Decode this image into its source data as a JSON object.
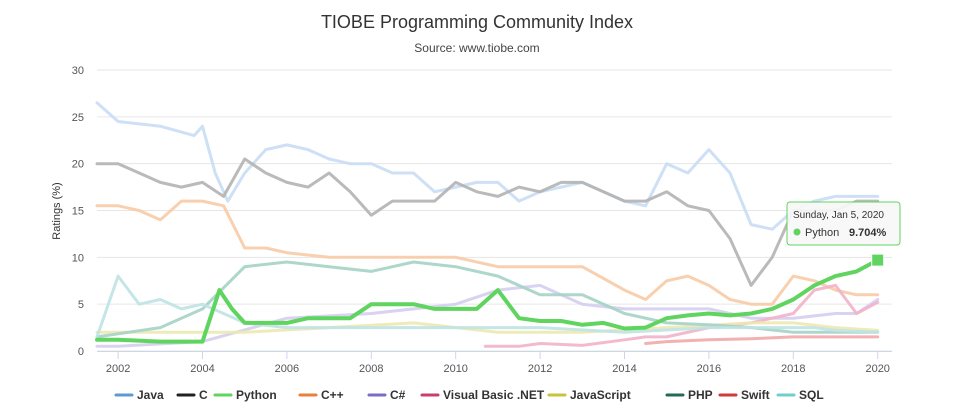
{
  "chart_data": {
    "type": "line",
    "title": "TIOBE Programming Community Index",
    "subtitle": "Source: www.tiobe.com",
    "ylabel": "Ratings (%)",
    "xlabel": "",
    "ylim": [
      0,
      30
    ],
    "xlim": [
      2001.5,
      2020.3
    ],
    "y_ticks": [
      "0",
      "5",
      "10",
      "15",
      "20",
      "25",
      "30"
    ],
    "x_ticks": [
      "2002",
      "2004",
      "2006",
      "2008",
      "2010",
      "2012",
      "2014",
      "2016",
      "2018",
      "2020"
    ],
    "grid": true,
    "legend_position": "bottom",
    "tooltip": {
      "date": "Sunday, Jan 5, 2020",
      "series": "Python",
      "value": "9.704%",
      "x": 2020.0,
      "y": 9.704
    },
    "series": [
      {
        "name": "Java",
        "color": "#c9ddf5",
        "legend_color": "#5b9bd5",
        "width": 3,
        "x": [
          2001.5,
          2002,
          2003,
          2003.8,
          2004,
          2004.3,
          2004.6,
          2005,
          2005.5,
          2006,
          2006.5,
          2007,
          2007.5,
          2008,
          2008.5,
          2009,
          2009.5,
          2010,
          2010.5,
          2011,
          2011.5,
          2012,
          2012.5,
          2013,
          2013.5,
          2014,
          2014.5,
          2015,
          2015.5,
          2016,
          2016.5,
          2017,
          2017.5,
          2018,
          2018.5,
          2019,
          2019.5,
          2020
        ],
        "y": [
          26.5,
          24.5,
          24,
          23,
          24,
          19,
          16,
          19,
          21.5,
          22,
          21.5,
          20.5,
          20,
          20,
          19,
          19,
          17,
          17.5,
          18,
          18,
          16,
          17,
          17.5,
          18,
          17,
          16,
          15.5,
          20,
          19,
          21.5,
          19,
          13.5,
          13,
          15,
          16,
          16.5,
          16.5,
          16.5
        ]
      },
      {
        "name": "C",
        "color": "#b3b3b3",
        "legend_color": "#222222",
        "width": 3,
        "x": [
          2001.5,
          2002,
          2002.5,
          2003,
          2003.5,
          2004,
          2004.5,
          2005,
          2005.5,
          2006,
          2006.5,
          2007,
          2007.5,
          2008,
          2008.5,
          2009,
          2009.5,
          2010,
          2010.5,
          2011,
          2011.5,
          2012,
          2012.5,
          2013,
          2013.5,
          2014,
          2014.5,
          2015,
          2015.5,
          2016,
          2016.5,
          2017,
          2017.5,
          2018,
          2018.5,
          2019,
          2019.5,
          2020
        ],
        "y": [
          20,
          20,
          19,
          18,
          17.5,
          18,
          16.5,
          20.5,
          19,
          18,
          17.5,
          19,
          17,
          14.5,
          16,
          16,
          16,
          18,
          17,
          16.5,
          17.5,
          17,
          18,
          18,
          17,
          16,
          16,
          17,
          15.5,
          15,
          12,
          7,
          10,
          15,
          15,
          15,
          16,
          16
        ]
      },
      {
        "name": "Python",
        "color": "#5fd45f",
        "legend_color": "#5fd45f",
        "width": 4,
        "x": [
          2001.5,
          2002,
          2003,
          2004,
          2004.4,
          2004.7,
          2005,
          2005.5,
          2006,
          2006.5,
          2007,
          2007.5,
          2008,
          2008.5,
          2009,
          2009.5,
          2010,
          2010.5,
          2011,
          2011.5,
          2012,
          2012.5,
          2013,
          2013.5,
          2014,
          2014.5,
          2015,
          2015.5,
          2016,
          2016.5,
          2017,
          2017.5,
          2018,
          2018.5,
          2019,
          2019.5,
          2020
        ],
        "y": [
          1.2,
          1.2,
          1.0,
          1.0,
          6.5,
          4.5,
          3,
          3,
          3,
          3.5,
          3.5,
          3.5,
          5,
          5,
          5,
          4.5,
          4.5,
          4.5,
          6.5,
          3.5,
          3.2,
          3.2,
          2.8,
          3,
          2.4,
          2.5,
          3.5,
          3.8,
          4,
          3.8,
          4,
          4.5,
          5.5,
          7,
          8,
          8.5,
          9.704
        ]
      },
      {
        "name": "C++",
        "color": "#f7cba6",
        "legend_color": "#e8803a",
        "width": 3,
        "x": [
          2001.5,
          2002,
          2002.5,
          2003,
          2003.5,
          2004,
          2004.5,
          2005,
          2005.5,
          2006,
          2007,
          2008,
          2009,
          2010,
          2011,
          2012,
          2013,
          2014,
          2014.5,
          2015,
          2015.5,
          2016,
          2016.5,
          2017,
          2017.5,
          2018,
          2018.5,
          2019,
          2019.5,
          2020
        ],
        "y": [
          15.5,
          15.5,
          15,
          14,
          16,
          16,
          15.5,
          11,
          11,
          10.5,
          10,
          10,
          10,
          10,
          9,
          9,
          9,
          6.5,
          5.5,
          7.5,
          8,
          7,
          5.5,
          5,
          5,
          8,
          7.5,
          6.5,
          6,
          6
        ]
      },
      {
        "name": "C#",
        "color": "#d5cdef",
        "legend_color": "#7c6bc9",
        "width": 3,
        "x": [
          2001.5,
          2002,
          2004,
          2006,
          2008,
          2010,
          2011,
          2012,
          2013,
          2014,
          2015,
          2016,
          2017,
          2018,
          2019,
          2019.5,
          2020
        ],
        "y": [
          0.5,
          0.5,
          1.0,
          3.5,
          4,
          5,
          6.5,
          7,
          5,
          4.5,
          4.5,
          4.5,
          3.5,
          3.5,
          4,
          4,
          5.5
        ]
      },
      {
        "name": "Visual Basic .NET",
        "color": "#f2b3c8",
        "legend_color": "#cc3c6e",
        "width": 3,
        "x": [
          2010.7,
          2011.5,
          2012,
          2013,
          2014,
          2014.5,
          2015,
          2016,
          2017,
          2017.5,
          2018,
          2018.5,
          2019,
          2019.5,
          2020
        ],
        "y": [
          0.5,
          0.5,
          0.8,
          0.6,
          1.2,
          1.5,
          1.5,
          2.5,
          3,
          3.5,
          4,
          6.5,
          7,
          4,
          5.2
        ]
      },
      {
        "name": "JavaScript",
        "color": "#ece9b0",
        "legend_color": "#c8c23e",
        "width": 3,
        "x": [
          2001.5,
          2003,
          2005,
          2007,
          2009,
          2011,
          2013,
          2015,
          2017,
          2018,
          2019,
          2020
        ],
        "y": [
          2,
          2,
          2,
          2.5,
          3,
          2,
          2,
          2.5,
          3,
          3,
          2.5,
          2.2
        ]
      },
      {
        "name": "PHP",
        "color": "#a4d3c4",
        "legend_color": "#1f6b58",
        "width": 3,
        "x": [
          2001.5,
          2003,
          2004,
          2005,
          2006,
          2007,
          2008,
          2009,
          2010,
          2011,
          2012,
          2013,
          2014,
          2015,
          2016,
          2017,
          2018,
          2019,
          2020
        ],
        "y": [
          1.5,
          2.5,
          4.5,
          9,
          9.5,
          9,
          8.5,
          9.5,
          9,
          8,
          6,
          6,
          4,
          3,
          2.8,
          2.5,
          2,
          2,
          2
        ]
      },
      {
        "name": "Swift",
        "color": "#f2a8a8",
        "legend_color": "#d03a3a",
        "width": 3,
        "x": [
          2014.5,
          2015,
          2016,
          2017,
          2018,
          2019,
          2020
        ],
        "y": [
          0.8,
          1.0,
          1.2,
          1.3,
          1.5,
          1.5,
          1.5
        ]
      },
      {
        "name": "SQL",
        "color": "#bfe3e3",
        "legend_color": "#6fcfcf",
        "width": 3,
        "x": [
          2001.5,
          2002,
          2002.5,
          2003,
          2003.5,
          2004,
          2004.5,
          2005,
          2006,
          2008,
          2010,
          2012,
          2014,
          2016,
          2018,
          2018.5,
          2019,
          2020
        ],
        "y": [
          1.5,
          8,
          5,
          5.5,
          4.5,
          5,
          4,
          3,
          2.5,
          2.5,
          2.5,
          2.5,
          2,
          2.5,
          2.5,
          2.5,
          2.2,
          2
        ]
      }
    ]
  }
}
